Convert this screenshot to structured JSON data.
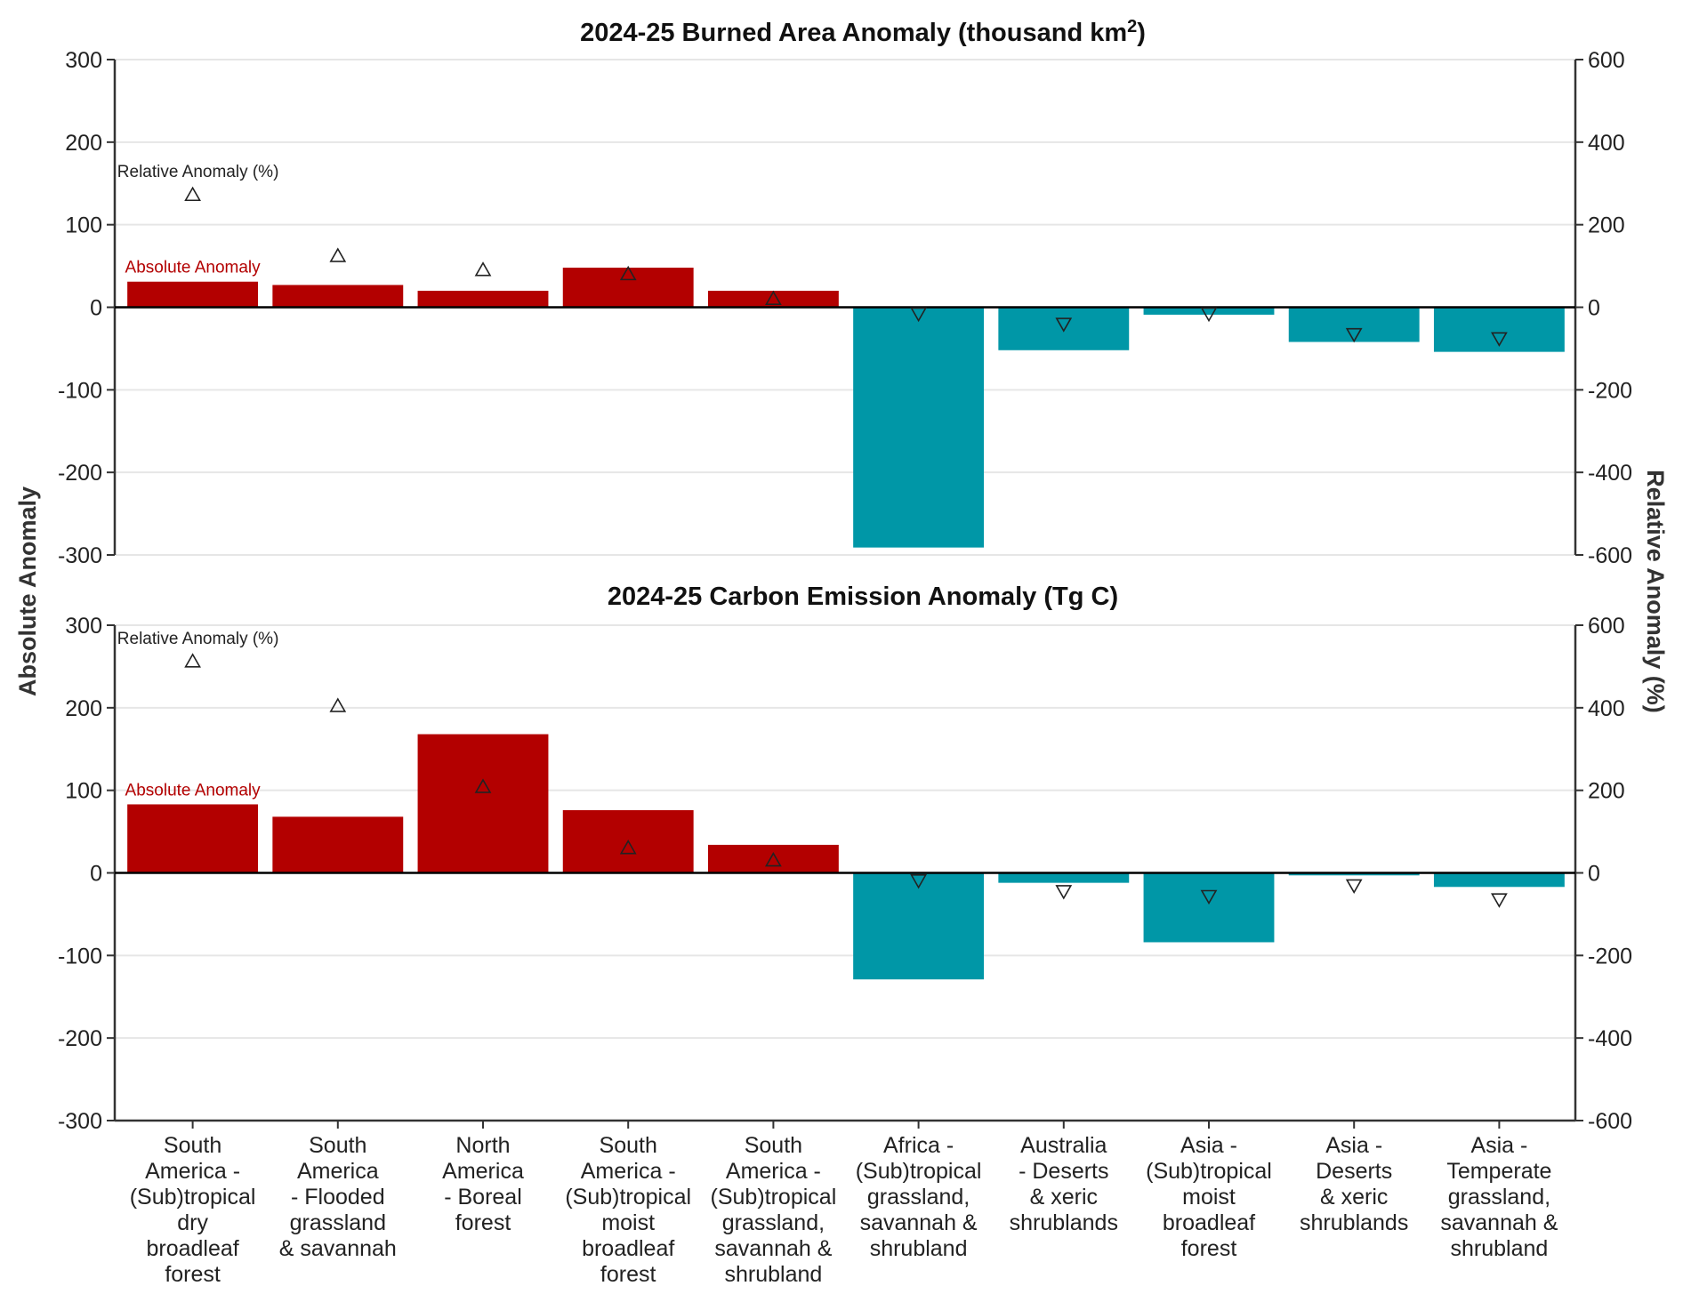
{
  "colors": {
    "positive": "#b30000",
    "negative": "#0097a7",
    "marker_stroke": "#222222",
    "grid": "#e6e6e6",
    "axis": "#333333",
    "zero_line": "#000000"
  },
  "y_axis_left_title": "Absolute Anomaly",
  "y_axis_right_title": "Relative Anomaly (%)",
  "categories": [
    [
      "South",
      "America -",
      "(Sub)tropical",
      "dry",
      "broadleaf",
      "forest"
    ],
    [
      "South",
      "America",
      "- Flooded",
      "grassland",
      "& savannah"
    ],
    [
      "North",
      "America",
      "- Boreal",
      "forest"
    ],
    [
      "South",
      "America -",
      "(Sub)tropical",
      "moist",
      "broadleaf",
      "forest"
    ],
    [
      "South",
      "America -",
      "(Sub)tropical",
      "grassland,",
      "savannah &",
      "shrubland"
    ],
    [
      "Africa -",
      "(Sub)tropical",
      "grassland,",
      "savannah &",
      "shrubland"
    ],
    [
      "Australia",
      "- Deserts",
      "& xeric",
      "shrublands"
    ],
    [
      "Asia -",
      "(Sub)tropical",
      "moist",
      "broadleaf",
      "forest"
    ],
    [
      "Asia -",
      "Deserts",
      "& xeric",
      "shrublands"
    ],
    [
      "Asia -",
      "Temperate",
      "grassland,",
      "savannah &",
      "shrubland"
    ]
  ],
  "chart_data": [
    {
      "type": "bar",
      "title": "2024-25 Burned Area Anomaly (thousand km",
      "title_superscript": "2",
      "title_suffix": ")",
      "ylim_left": [
        -300,
        300
      ],
      "yticks_left": [
        "300",
        "200",
        "100",
        "0",
        "-100",
        "-200",
        "-300"
      ],
      "ylim_right": [
        -600,
        600
      ],
      "yticks_right": [
        "600",
        "400",
        "200",
        "0",
        "-200",
        "-400",
        "-600"
      ],
      "grid": true,
      "annotation_absolute": "Absolute Anomaly",
      "annotation_relative": "Relative Anomaly (%)",
      "series": [
        {
          "name": "Absolute Anomaly",
          "axis": "left",
          "values": [
            31,
            27,
            20,
            48,
            20,
            -291,
            -52,
            -9,
            -42,
            -54
          ]
        },
        {
          "name": "Relative Anomaly (%)",
          "axis": "right",
          "values": [
            272,
            124,
            90,
            80,
            20,
            -15,
            -40,
            -15,
            -65,
            -75
          ]
        }
      ]
    },
    {
      "type": "bar",
      "title": "2024-25 Carbon Emission Anomaly (Tg C)",
      "title_superscript": "",
      "title_suffix": "",
      "ylim_left": [
        -300,
        300
      ],
      "yticks_left": [
        "300",
        "200",
        "100",
        "0",
        "-100",
        "-200",
        "-300"
      ],
      "ylim_right": [
        -600,
        600
      ],
      "yticks_right": [
        "600",
        "400",
        "200",
        "0",
        "-200",
        "-400",
        "-600"
      ],
      "grid": true,
      "annotation_absolute": "Absolute Anomaly",
      "annotation_relative": "Relative Anomaly (%)",
      "series": [
        {
          "name": "Absolute Anomaly",
          "axis": "left",
          "values": [
            83,
            68,
            168,
            76,
            34,
            -129,
            -12,
            -84,
            -3,
            -17
          ]
        },
        {
          "name": "Relative Anomaly (%)",
          "axis": "right",
          "values": [
            512,
            404,
            208,
            60,
            30,
            -18,
            -44,
            -56,
            -30,
            -64
          ]
        }
      ]
    }
  ]
}
